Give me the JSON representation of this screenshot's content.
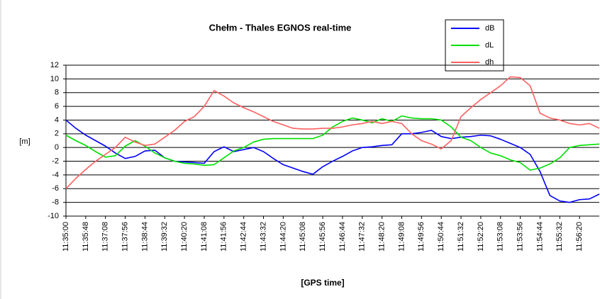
{
  "chart_data": {
    "type": "line",
    "title": "Chełm - Thales EGNOS real-time",
    "x_label": "[GPS time]",
    "y_label": "[m]",
    "categories": [
      "11:35:00",
      null,
      "11:35:48",
      null,
      "11:37:08",
      null,
      "11:37:56",
      null,
      "11:38:44",
      null,
      "11:39:32",
      null,
      "11:40:20",
      null,
      "11:41:08",
      null,
      "11:41:56",
      null,
      "11:42:44",
      null,
      "11:43:32",
      null,
      "11:44:20",
      null,
      "11:45:08",
      null,
      "11:45:56",
      null,
      "11:46:44",
      null,
      "11:47:32",
      null,
      "11:48:20",
      null,
      "11:49:08",
      null,
      "11:49:56",
      null,
      "11:50:44",
      null,
      "11:51:32",
      null,
      "11:52:20",
      null,
      "11:53:08",
      null,
      "11:53:56",
      null,
      "11:54:44",
      null,
      "11:55:32",
      null,
      "11:56:20",
      null,
      null
    ],
    "series": [
      {
        "name": "dB",
        "color": "#0000ff",
        "values": [
          4,
          2.8,
          1.8,
          1.0,
          0.2,
          -0.8,
          -1.6,
          -1.3,
          -0.5,
          -0.4,
          -1.5,
          -2,
          -2.1,
          -2.2,
          -2.3,
          -0.6,
          0.1,
          -0.6,
          -0.3,
          0,
          -0.6,
          -1.6,
          -2.5,
          -3,
          -3.5,
          -3.9,
          -2.8,
          -2,
          -1.3,
          -0.5,
          0,
          0.1,
          0.3,
          0.4,
          2,
          2,
          2.2,
          2.5,
          1.6,
          1.3,
          1.5,
          1.6,
          1.8,
          1.7,
          1.2,
          0.6,
          0,
          -1,
          -3.5,
          -7,
          -7.8,
          -8,
          -7.6,
          -7.5,
          -6.8
        ]
      },
      {
        "name": "dL",
        "color": "#00e000",
        "values": [
          1.8,
          1.0,
          0.3,
          -0.6,
          -1.4,
          -1.2,
          0.2,
          1.0,
          0.2,
          -0.8,
          -1.5,
          -2,
          -2.3,
          -2.4,
          -2.6,
          -2.5,
          -1.5,
          -0.5,
          0,
          0.8,
          1.2,
          1.3,
          1.3,
          1.3,
          1.3,
          1.3,
          1.8,
          3,
          3.8,
          4.3,
          4,
          3.6,
          4.2,
          3.8,
          4.6,
          4.3,
          4.2,
          4.2,
          4,
          3,
          1.5,
          1,
          0,
          -0.8,
          -1.2,
          -1.8,
          -2.2,
          -3.3,
          -3,
          -2.4,
          -1.5,
          0,
          0.3,
          0.4,
          0.5
        ]
      },
      {
        "name": "dh",
        "color": "#ff6060",
        "values": [
          -6,
          -4.5,
          -3.2,
          -2,
          -1,
          0,
          1.5,
          0.8,
          0.3,
          0.5,
          1.5,
          2.5,
          3.8,
          4.5,
          6,
          8.3,
          7.5,
          6.5,
          5.8,
          5.2,
          4.5,
          3.8,
          3.3,
          2.8,
          2.7,
          2.7,
          2.8,
          2.8,
          3,
          3.3,
          3.5,
          3.8,
          3.5,
          3.8,
          3.5,
          2,
          1,
          0.5,
          -0.2,
          1,
          4.5,
          5.8,
          7,
          8,
          9,
          10.3,
          10.2,
          9,
          5,
          4.3,
          4,
          3.5,
          3.3,
          3.5,
          2.8
        ]
      }
    ],
    "ylim": [
      -10,
      12
    ],
    "yticks": [
      -10,
      -8,
      -6,
      -4,
      -2,
      0,
      2,
      4,
      6,
      8,
      10,
      12
    ],
    "grid": true,
    "legend": "top-right"
  }
}
